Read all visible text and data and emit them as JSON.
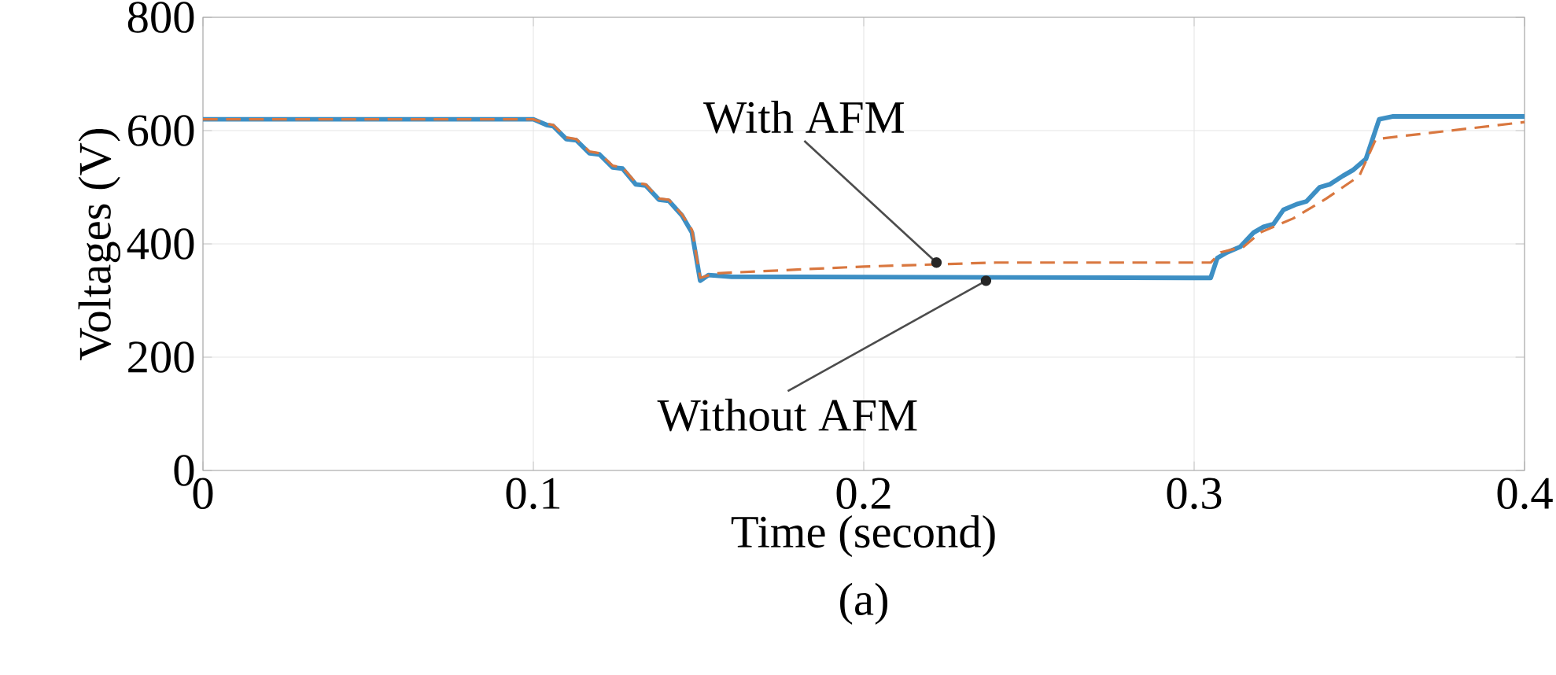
{
  "chart_data": {
    "type": "line",
    "xlabel": "Time (second)",
    "ylabel": "Voltages (V)",
    "xlim": [
      0,
      0.4
    ],
    "ylim": [
      0,
      800
    ],
    "xticks": [
      0,
      0.1,
      0.2,
      0.3,
      0.4
    ],
    "yticks": [
      0,
      200,
      400,
      600,
      800
    ],
    "grid": true,
    "series": [
      {
        "color": "#3d8fc4",
        "line_style": "solid",
        "x": [
          0,
          0.1,
          0.104,
          0.106,
          0.11,
          0.113,
          0.117,
          0.12,
          0.124,
          0.127,
          0.131,
          0.134,
          0.138,
          0.141,
          0.145,
          0.148,
          0.1505,
          0.153,
          0.16,
          0.3,
          0.305,
          0.307,
          0.31,
          0.314,
          0.318,
          0.321,
          0.324,
          0.327,
          0.331,
          0.334,
          0.338,
          0.341,
          0.345,
          0.348,
          0.352,
          0.356,
          0.36,
          0.4
        ],
        "values": [
          620,
          620,
          610,
          608,
          585,
          583,
          560,
          558,
          535,
          533,
          505,
          503,
          478,
          476,
          450,
          420,
          335,
          345,
          342,
          340,
          340,
          375,
          385,
          395,
          420,
          430,
          435,
          460,
          470,
          475,
          500,
          505,
          520,
          530,
          550,
          620,
          625,
          625
        ]
      },
      {
        "color": "#d9773f",
        "line_style": "dashed",
        "x": [
          0,
          0.1,
          0.104,
          0.106,
          0.11,
          0.113,
          0.117,
          0.12,
          0.124,
          0.127,
          0.131,
          0.134,
          0.138,
          0.141,
          0.145,
          0.148,
          0.1505,
          0.155,
          0.2,
          0.24,
          0.305,
          0.308,
          0.315,
          0.32,
          0.33,
          0.34,
          0.35,
          0.355,
          0.37,
          0.4
        ],
        "values": [
          620,
          620,
          612,
          610,
          588,
          585,
          563,
          560,
          538,
          535,
          508,
          505,
          480,
          478,
          452,
          425,
          340,
          348,
          360,
          367,
          367,
          385,
          395,
          420,
          445,
          480,
          520,
          585,
          595,
          615
        ]
      }
    ],
    "annotations": [
      {
        "text": "With AFM",
        "x": 0.222,
        "y": 367
      },
      {
        "text": "Without AFM",
        "x": 0.237,
        "y": 335
      },
      "(a)"
    ]
  }
}
